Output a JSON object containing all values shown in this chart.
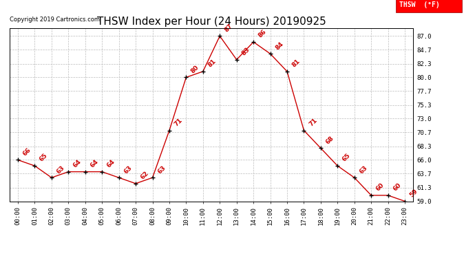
{
  "title": "THSW Index per Hour (24 Hours) 20190925",
  "copyright": "Copyright 2019 Cartronics.com",
  "legend_label": "THSW  (°F)",
  "hours": [
    "00:00",
    "01:00",
    "02:00",
    "03:00",
    "04:00",
    "05:00",
    "06:00",
    "07:00",
    "08:00",
    "09:00",
    "10:00",
    "11:00",
    "12:00",
    "13:00",
    "14:00",
    "15:00",
    "16:00",
    "17:00",
    "18:00",
    "19:00",
    "20:00",
    "21:00",
    "22:00",
    "23:00"
  ],
  "values": [
    66,
    65,
    63,
    64,
    64,
    64,
    63,
    62,
    63,
    71,
    80,
    81,
    87,
    83,
    86,
    84,
    81,
    71,
    68,
    65,
    63,
    60,
    60,
    59
  ],
  "line_color": "#cc0000",
  "marker_color": "#000000",
  "label_color": "#cc0000",
  "background_color": "#ffffff",
  "grid_color": "#bbbbbb",
  "ylim_min": 59.0,
  "ylim_max": 88.3,
  "yticks": [
    59.0,
    61.3,
    63.7,
    66.0,
    68.3,
    70.7,
    73.0,
    75.3,
    77.7,
    80.0,
    82.3,
    84.7,
    87.0
  ],
  "title_fontsize": 11,
  "label_fontsize": 6.5,
  "tick_fontsize": 6.5,
  "copyright_fontsize": 6,
  "legend_fontsize": 7
}
